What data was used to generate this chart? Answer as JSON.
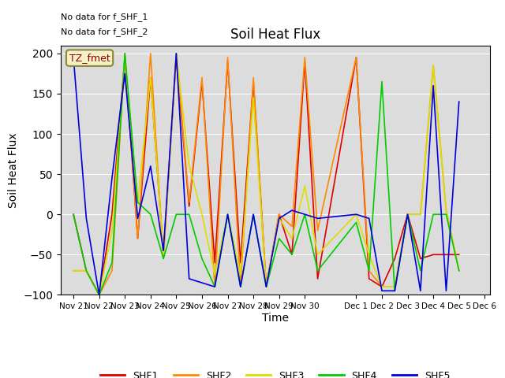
{
  "title": "Soil Heat Flux",
  "ylabel": "Soil Heat Flux",
  "xlabel": "Time",
  "text_no_data_1": "No data for f_SHF_1",
  "text_no_data_2": "No data for f_SHF_2",
  "tz_label": "TZ_fmet",
  "ylim": [
    -100,
    210
  ],
  "yticks": [
    -100,
    -50,
    0,
    50,
    100,
    150,
    200
  ],
  "background_color": "#dcdcdc",
  "series": {
    "SHF1": {
      "color": "#dd0000",
      "x": [
        21.0,
        21.5,
        22.0,
        22.5,
        23.0,
        23.5,
        24.0,
        24.5,
        25.0,
        25.5,
        26.0,
        26.5,
        27.0,
        27.5,
        28.0,
        28.5,
        29.0,
        29.5,
        30.0,
        30.5,
        32.0,
        32.5,
        33.0,
        33.5,
        34.0,
        34.5,
        35.0,
        35.5,
        36.0
      ],
      "y": [
        0,
        -70,
        -100,
        0,
        195,
        -30,
        170,
        -50,
        195,
        10,
        165,
        -60,
        190,
        -60,
        165,
        -90,
        0,
        -50,
        190,
        -80,
        195,
        -80,
        -90,
        -55,
        0,
        -55,
        -50,
        -50,
        -50
      ]
    },
    "SHF2": {
      "color": "#ff8800",
      "x": [
        21.0,
        21.5,
        22.0,
        22.5,
        23.0,
        23.5,
        24.0,
        24.5,
        25.0,
        25.5,
        26.0,
        26.5,
        27.0,
        27.5,
        28.0,
        28.5,
        29.0,
        29.5,
        30.0,
        30.5,
        32.0,
        32.5,
        33.0,
        33.5,
        34.0,
        34.5,
        35.0,
        35.5,
        36.0
      ],
      "y": [
        -70,
        -70,
        -100,
        -70,
        200,
        -30,
        200,
        -55,
        200,
        15,
        170,
        -90,
        195,
        -90,
        170,
        -90,
        0,
        -15,
        195,
        -20,
        195,
        -70,
        -90,
        -90,
        0,
        0,
        185,
        5,
        -70
      ]
    },
    "SHF3": {
      "color": "#dddd00",
      "x": [
        21.0,
        21.5,
        22.0,
        22.5,
        23.0,
        23.5,
        24.0,
        24.5,
        25.0,
        25.5,
        26.0,
        26.5,
        27.0,
        27.5,
        28.0,
        28.5,
        29.0,
        29.5,
        30.0,
        30.5,
        32.0,
        32.5,
        33.0,
        33.5,
        34.0,
        34.5,
        35.0,
        35.5,
        36.0
      ],
      "y": [
        -70,
        -70,
        -100,
        -20,
        195,
        15,
        170,
        -50,
        200,
        60,
        0,
        -75,
        0,
        -75,
        145,
        -90,
        -5,
        -30,
        35,
        -50,
        0,
        -50,
        -90,
        -90,
        0,
        0,
        185,
        5,
        -70
      ]
    },
    "SHF4": {
      "color": "#00cc00",
      "x": [
        21.0,
        21.5,
        22.0,
        22.5,
        23.0,
        23.5,
        24.0,
        24.5,
        25.0,
        25.5,
        26.0,
        26.5,
        27.0,
        27.5,
        28.0,
        28.5,
        29.0,
        29.5,
        30.0,
        30.5,
        32.0,
        32.5,
        33.0,
        33.5,
        34.0,
        34.5,
        35.0,
        35.5,
        36.0
      ],
      "y": [
        0,
        -70,
        -100,
        -60,
        200,
        15,
        0,
        -55,
        0,
        0,
        -55,
        -90,
        0,
        -90,
        0,
        -90,
        -30,
        -50,
        0,
        -70,
        -10,
        -70,
        165,
        -95,
        0,
        -70,
        0,
        0,
        -70
      ]
    },
    "SHF5": {
      "color": "#0000dd",
      "x": [
        21.0,
        21.5,
        22.0,
        22.5,
        23.0,
        23.5,
        24.0,
        24.5,
        25.0,
        25.5,
        26.0,
        26.5,
        27.0,
        27.5,
        28.0,
        28.5,
        29.0,
        29.5,
        30.0,
        30.5,
        32.0,
        32.5,
        33.0,
        33.5,
        34.0,
        34.5,
        35.0,
        35.5,
        36.0
      ],
      "y": [
        195,
        -5,
        -100,
        45,
        175,
        -5,
        60,
        -45,
        200,
        -80,
        -85,
        -90,
        0,
        -90,
        0,
        -90,
        -5,
        5,
        0,
        -5,
        0,
        -5,
        -95,
        -95,
        0,
        -95,
        160,
        -95,
        140
      ]
    }
  },
  "xtick_positions": [
    21,
    22,
    23,
    24,
    25,
    26,
    27,
    28,
    29,
    30,
    32,
    33,
    34,
    35,
    36,
    37
  ],
  "xtick_labels": [
    "Nov 21",
    "Nov 22",
    "Nov 23",
    "Nov 24",
    "Nov 25",
    "Nov 26",
    "Nov 27",
    "Nov 28",
    "Nov 29",
    "Nov 30",
    "Dec 1",
    "Dec 2",
    "Dec 3",
    "Dec 4",
    "Dec 5",
    "Dec 6"
  ],
  "xlim": [
    20.5,
    37.2
  ],
  "grid_color": "#ffffff",
  "legend_entries": [
    "SHF1",
    "SHF2",
    "SHF3",
    "SHF4",
    "SHF5"
  ],
  "legend_colors": [
    "#dd0000",
    "#ff8800",
    "#dddd00",
    "#00cc00",
    "#0000dd"
  ]
}
